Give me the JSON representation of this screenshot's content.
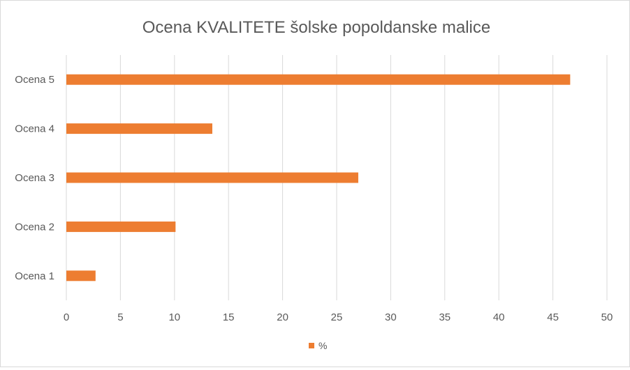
{
  "chart_data": {
    "type": "bar",
    "orientation": "horizontal",
    "title": "Ocena KVALITETE šolske popoldanske malice",
    "categories": [
      "Ocena 1",
      "Ocena 2",
      "Ocena 3",
      "Ocena 4",
      "Ocena 5"
    ],
    "series": [
      {
        "name": "%",
        "values": [
          2.7,
          10.1,
          27.0,
          13.5,
          46.6
        ],
        "color": "#ed7d31"
      }
    ],
    "x_ticks": [
      "0",
      "5",
      "10",
      "15",
      "20",
      "25",
      "30",
      "35",
      "40",
      "45",
      "50"
    ],
    "xlim": [
      0,
      50
    ],
    "grid": true,
    "legend": "bottom-center",
    "colors": {
      "bar": "#ed7d31",
      "grid": "#d9d9d9",
      "text": "#595959",
      "title": "#595959"
    }
  }
}
